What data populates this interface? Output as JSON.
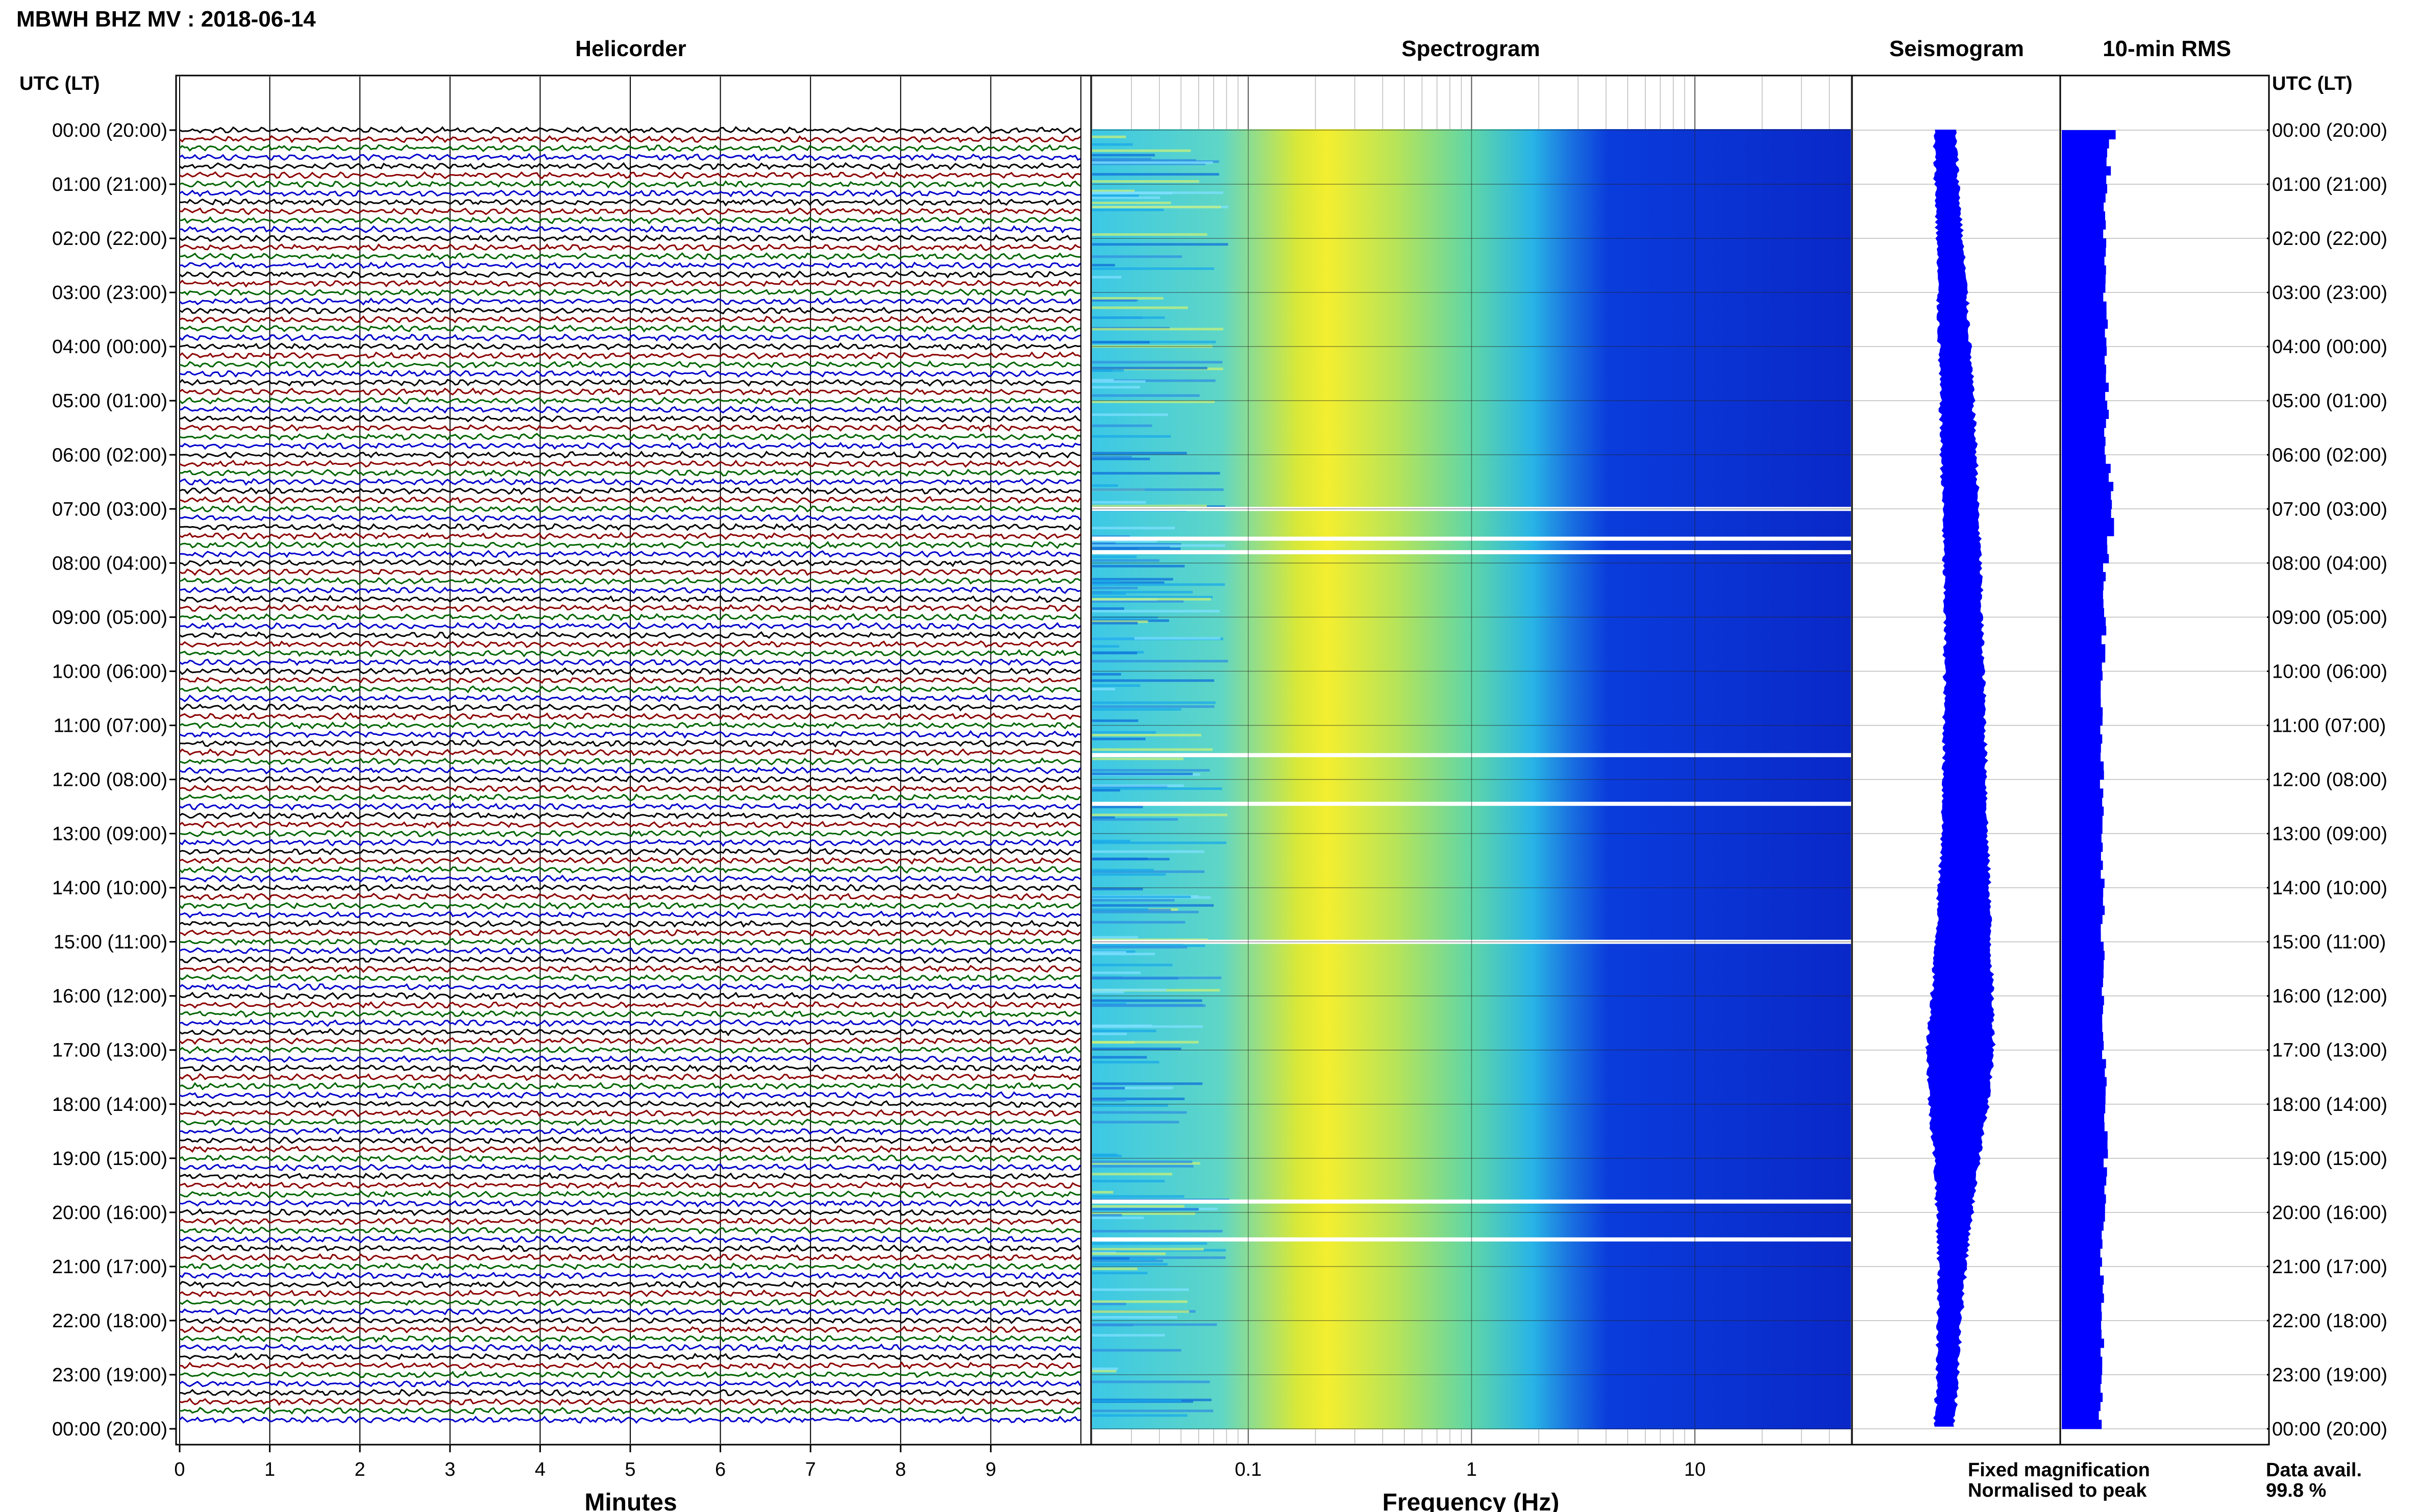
{
  "header": {
    "station_title": "MBWH BHZ MV : 2018-06-14",
    "time_axis_label": "UTC (LT)"
  },
  "panels": {
    "helicorder": "Helicorder",
    "spectrogram": "Spectrogram",
    "seismogram": "Seismogram",
    "rms": "10-min RMS"
  },
  "axes": {
    "minutes_label": "Minutes",
    "frequency_label": "Frequency (Hz)",
    "minute_ticks": [
      "0",
      "1",
      "2",
      "3",
      "4",
      "5",
      "6",
      "7",
      "8",
      "9"
    ],
    "frequency_ticks": [
      "0.1",
      "1",
      "10"
    ]
  },
  "time_labels": [
    "00:00 (20:00)",
    "01:00 (21:00)",
    "02:00 (22:00)",
    "03:00 (23:00)",
    "04:00 (00:00)",
    "05:00 (01:00)",
    "06:00 (02:00)",
    "07:00 (03:00)",
    "08:00 (04:00)",
    "09:00 (05:00)",
    "10:00 (06:00)",
    "11:00 (07:00)",
    "12:00 (08:00)",
    "13:00 (09:00)",
    "14:00 (10:00)",
    "15:00 (11:00)",
    "16:00 (12:00)",
    "17:00 (13:00)",
    "18:00 (14:00)",
    "19:00 (15:00)",
    "20:00 (16:00)",
    "21:00 (17:00)",
    "22:00 (18:00)",
    "23:00 (19:00)",
    "00:00 (20:00)"
  ],
  "legend": {
    "fixed": "Fixed magnification",
    "normalised": "Normalised to peak",
    "fixed_color": "#1010e0",
    "normalised_color": "#ee1111"
  },
  "data_availability": {
    "label": "Data avail.",
    "value": "99.8 %"
  },
  "colors": {
    "trace_cycle": [
      "#000000",
      "#8b0000",
      "#006400",
      "#0000cc"
    ],
    "seismo_blue": "#0000ff",
    "rms_blue": "#0000ff"
  },
  "chart_data": {
    "type": "heatmap",
    "title": "MBWH BHZ MV : 2018-06-14",
    "xlabel": "Frequency (Hz)",
    "x_scale": "log",
    "xlim": [
      0.02,
      50
    ],
    "ylim_hours_utc": [
      0,
      24
    ],
    "helicorder_xlim_minutes": [
      0,
      10
    ],
    "spectrogram_gap_hours": [
      7.0,
      7.55,
      7.8,
      11.55,
      12.45,
      15.0,
      19.8,
      20.5
    ],
    "seismogram_width_by_hour": [
      0.05,
      0.06,
      0.07,
      0.09,
      0.1,
      0.11,
      0.12,
      0.12,
      0.13,
      0.13,
      0.14,
      0.15,
      0.16,
      0.17,
      0.2,
      0.22,
      0.25,
      0.28,
      0.24,
      0.17,
      0.12,
      0.08,
      0.06,
      0.05,
      0.04
    ],
    "rms_relative_by_hour": [
      0.62,
      0.56,
      0.53,
      0.54,
      0.55,
      0.56,
      0.57,
      0.65,
      0.55,
      0.53,
      0.52,
      0.51,
      0.5,
      0.5,
      0.51,
      0.52,
      0.53,
      0.53,
      0.54,
      0.55,
      0.52,
      0.51,
      0.5,
      0.5,
      0.49
    ]
  }
}
